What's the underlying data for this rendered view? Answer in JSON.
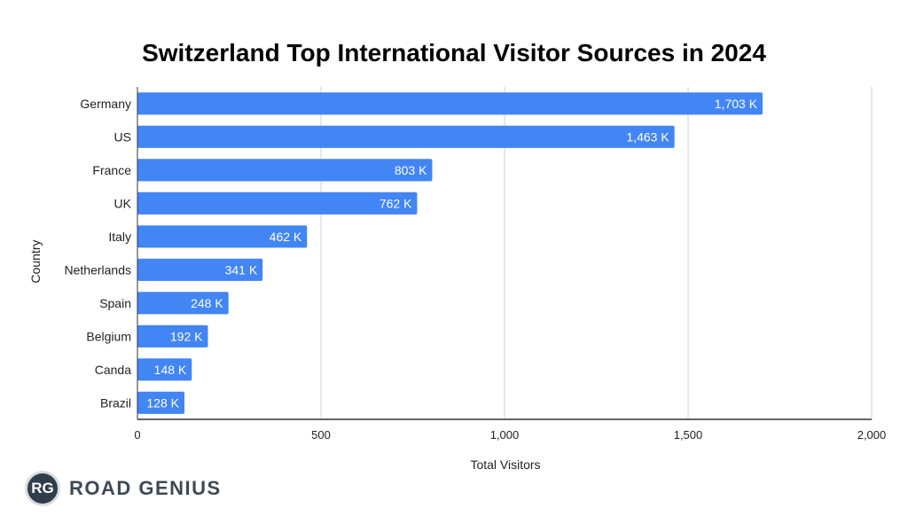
{
  "chart_data": {
    "type": "bar",
    "orientation": "horizontal",
    "title": "Switzerland Top International Visitor Sources in 2024",
    "xlabel": "Total Visitors",
    "ylabel": "Country",
    "xlim": [
      0,
      2000
    ],
    "x_ticks": [
      0,
      500,
      1000,
      1500,
      2000
    ],
    "x_tick_labels": [
      "0",
      "500",
      "1,000",
      "1,500",
      "2,000"
    ],
    "categories": [
      "Germany",
      "US",
      "France",
      "UK",
      "Italy",
      "Netherlands",
      "Spain",
      "Belgium",
      "Canda",
      "Brazil"
    ],
    "values": [
      1703,
      1463,
      803,
      762,
      462,
      341,
      248,
      192,
      148,
      128
    ],
    "data_labels": [
      "1,703 K",
      "1,463 K",
      "803 K",
      "762 K",
      "462 K",
      "341 K",
      "248 K",
      "192 K",
      "148 K",
      "128 K"
    ],
    "bar_color": "#4285f4",
    "grid": true,
    "legend": "none"
  },
  "logo": {
    "badge": "RG",
    "name": "ROAD GENIUS"
  }
}
